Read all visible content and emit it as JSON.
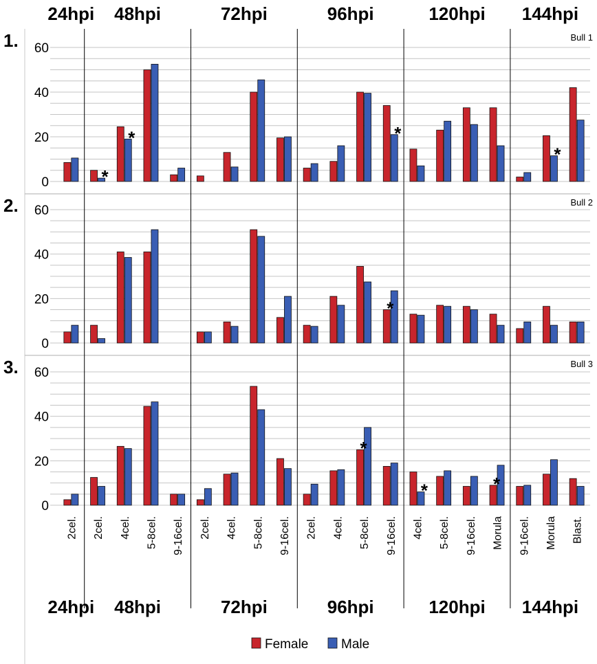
{
  "chart_data": {
    "type": "bar",
    "top_header": [
      "24hpi",
      "48hpi",
      "72hpi",
      "96hpi",
      "120hpi",
      "144hpi"
    ],
    "bottom_header": [
      "24hpi",
      "48hpi",
      "72hpi",
      "96hpi",
      "120hpi",
      "144hpi"
    ],
    "categories": [
      "2cel.",
      "2cel.",
      "4cel.",
      "5-8cel.",
      "9-16cel.",
      "2cel.",
      "4cel.",
      "5-8cel.",
      "9-16cel.",
      "2cel.",
      "4cel.",
      "5-8cel.",
      "9-16cel.",
      "4cel.",
      "5-8cel.",
      "9-16cel.",
      "Morula",
      "9-16cel.",
      "Morula",
      "Blast."
    ],
    "group_sizes": [
      1,
      4,
      4,
      4,
      4,
      3
    ],
    "ylim": [
      0,
      60
    ],
    "yticks": [
      "0",
      "20",
      "40",
      "60"
    ],
    "legend": [
      {
        "name": "Female",
        "color": "#c8252c"
      },
      {
        "name": "Male",
        "color": "#3a5eb4"
      }
    ],
    "legend_position": "bottom-center",
    "grid": true,
    "star_symbol": "*",
    "panels": [
      {
        "number": "1.",
        "label": "Bull 1",
        "female": [
          8.5,
          5,
          24.5,
          50,
          3,
          2.5,
          13,
          40,
          19.5,
          6,
          9,
          40,
          34,
          14.5,
          23,
          33,
          33,
          2,
          20.5,
          42
        ],
        "male": [
          10.5,
          1.5,
          19,
          52.5,
          6,
          0,
          6.5,
          45.5,
          20,
          8,
          16,
          39.5,
          21,
          7,
          27,
          25.5,
          16,
          4,
          11.5,
          27.5
        ],
        "stars": [
          {
            "category": 1,
            "series": "male"
          },
          {
            "category": 2,
            "series": "male"
          },
          {
            "category": 12,
            "series": "male"
          },
          {
            "category": 18,
            "series": "male"
          }
        ]
      },
      {
        "number": "2.",
        "label": "Bull 2",
        "female": [
          5,
          8,
          41,
          41,
          0,
          5,
          9.5,
          51,
          11.5,
          8,
          21,
          34.5,
          15,
          13,
          17,
          16.5,
          13,
          6.5,
          16.5,
          9.5
        ],
        "male": [
          8,
          2,
          38.5,
          51,
          0,
          5,
          7.5,
          48,
          21,
          7.5,
          17,
          27.5,
          23.5,
          12.5,
          16.5,
          15,
          8,
          9.5,
          8,
          9.5
        ],
        "stars": [
          {
            "category": 12,
            "series": "female"
          }
        ]
      },
      {
        "number": "3.",
        "label": "Bull 3",
        "female": [
          2.5,
          12.5,
          26.5,
          44.5,
          5,
          2.5,
          14,
          53.5,
          21,
          5,
          15.5,
          25,
          17.5,
          15,
          13,
          8.5,
          9,
          8.5,
          14,
          12
        ],
        "male": [
          5,
          8.5,
          25.5,
          46.5,
          5,
          7.5,
          14.5,
          43,
          16.5,
          9.5,
          16,
          35,
          19,
          6,
          15.5,
          13,
          18,
          9,
          20.5,
          8.5
        ],
        "stars": [
          {
            "category": 11,
            "series": "female"
          },
          {
            "category": 13,
            "series": "male"
          },
          {
            "category": 16,
            "series": "female"
          }
        ]
      }
    ]
  }
}
